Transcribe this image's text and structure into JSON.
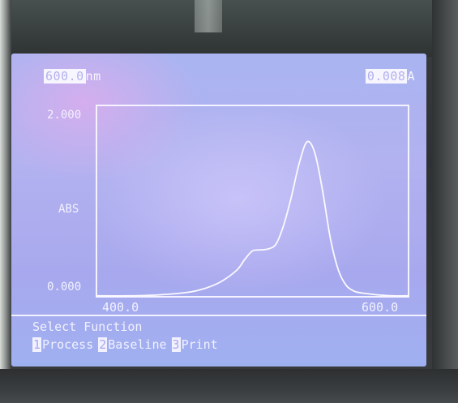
{
  "header": {
    "wavelength_value": "600.0",
    "wavelength_unit": "nm",
    "absorbance_value": "0.008",
    "absorbance_unit": "A"
  },
  "chart_data": {
    "type": "line",
    "title": "",
    "xlabel": "",
    "ylabel": "ABS",
    "xlim": [
      400.0,
      600.0
    ],
    "ylim": [
      0.0,
      2.0
    ],
    "x_tick_labels": [
      "400.0",
      "600.0"
    ],
    "y_tick_labels": [
      "2.000",
      "0.000"
    ],
    "grid": false,
    "series": [
      {
        "x": [
          400,
          420,
          440,
          460,
          470,
          480,
          490,
          495,
          500,
          505,
          510,
          515,
          520,
          525,
          530,
          535,
          540,
          545,
          550,
          555,
          560,
          565,
          570,
          575,
          580,
          590,
          600
        ],
        "values": [
          0.01,
          0.01,
          0.02,
          0.05,
          0.09,
          0.16,
          0.28,
          0.39,
          0.48,
          0.49,
          0.5,
          0.55,
          0.75,
          1.05,
          1.4,
          1.62,
          1.5,
          1.1,
          0.6,
          0.28,
          0.12,
          0.06,
          0.04,
          0.03,
          0.02,
          0.01,
          0.01
        ]
      }
    ]
  },
  "menu": {
    "title": "Select Function",
    "items": [
      {
        "key": "1",
        "label": "Process"
      },
      {
        "key": "2",
        "label": "Baseline"
      },
      {
        "key": "3",
        "label": "Print"
      }
    ]
  }
}
